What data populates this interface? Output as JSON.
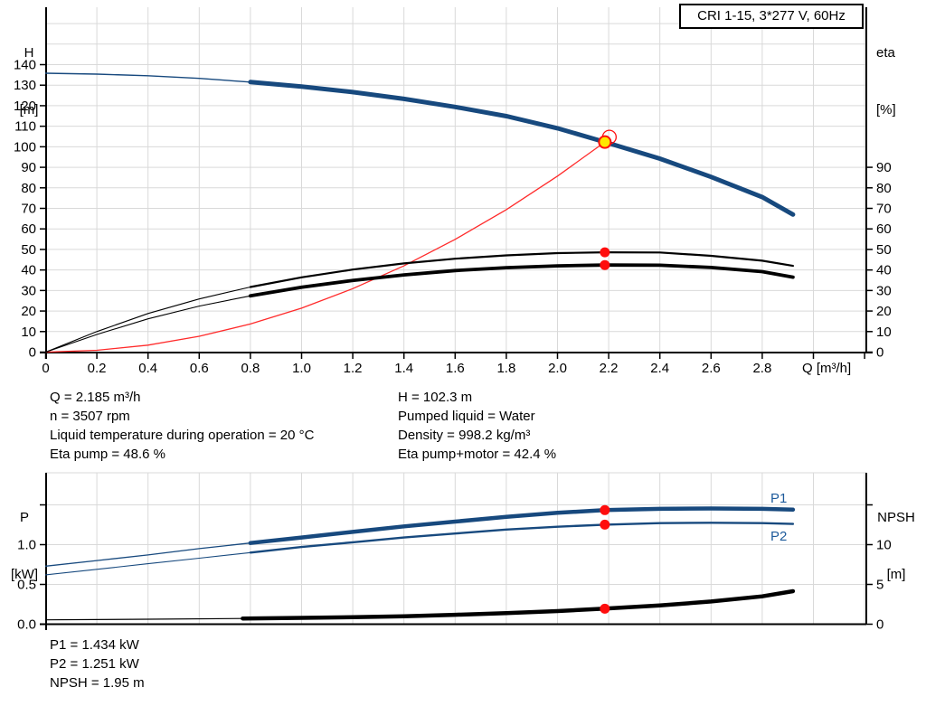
{
  "title_box": {
    "label": "CRI 1-15, 3*277 V, 60Hz"
  },
  "axis_titles": {
    "h": [
      "H",
      "[m]"
    ],
    "eta": [
      "eta",
      "[%]"
    ],
    "q": "Q [m³/h]",
    "p": [
      "P",
      "[kW]"
    ],
    "npsh": [
      "NPSH",
      "[m]"
    ],
    "p1": "P1",
    "p2": "P2"
  },
  "info_top": {
    "left": [
      "Q = 2.185 m³/h",
      "n = 3507 rpm",
      "Liquid temperature during operation = 20 °C",
      "Eta pump = 48.6 %"
    ],
    "right": [
      "H = 102.3 m",
      "Pumped liquid = Water",
      "Density = 998.2 kg/m³",
      "Eta pump+motor = 42.4 %"
    ]
  },
  "info_bottom": [
    "P1 = 1.434 kW",
    "P2 = 1.251 kW",
    "NPSH = 1.95 m"
  ],
  "colors": {
    "curve_blue": "#17497e",
    "curve_black": "#000000",
    "system_red": "#ff2a2a",
    "marker_red": "#ff0d0d",
    "duty_yellow": "#ffe600",
    "grid": "#d9d9d9",
    "axis": "#000000",
    "label_blue": "#1d5a9b"
  },
  "chart_data": [
    {
      "type": "line",
      "title": "CRI 1-15, 3*277 V, 60Hz",
      "xlabel": "Q [m³/h]",
      "ylabel_left": "H [m]",
      "ylabel_right": "eta [%]",
      "xlim": [
        0,
        3.2
      ],
      "ylim_left": [
        0,
        168
      ],
      "ylim_right_eta": [
        0,
        168
      ],
      "grid": true,
      "x_axis": {
        "tick_values": [
          0,
          0.2,
          0.4,
          0.6,
          0.8,
          1.0,
          1.2,
          1.4,
          1.6,
          1.8,
          2.0,
          2.2,
          2.4,
          2.6,
          2.8,
          3.0,
          3.2
        ],
        "tick_labels": [
          "0",
          "0.2",
          "0.4",
          "0.6",
          "0.8",
          "1.0",
          "1.2",
          "1.4",
          "1.6",
          "1.8",
          "2.0",
          "2.2",
          "2.4",
          "2.6",
          "2.8",
          "",
          ""
        ]
      },
      "h_axis": {
        "tick_values": [
          0,
          10,
          20,
          30,
          40,
          50,
          60,
          70,
          80,
          90,
          100,
          110,
          120,
          130,
          140
        ],
        "tick_labels": [
          "0",
          "10",
          "20",
          "30",
          "40",
          "50",
          "60",
          "70",
          "80",
          "90",
          "100",
          "110",
          "120",
          "130",
          "140"
        ]
      },
      "eta_axis": {
        "tick_values": [
          0,
          10,
          20,
          30,
          40,
          50,
          60,
          70,
          80,
          90
        ],
        "tick_labels": [
          "0",
          "10",
          "20",
          "30",
          "40",
          "50",
          "60",
          "70",
          "80",
          "90"
        ]
      },
      "series": [
        {
          "name": "system-curve",
          "axis": "H",
          "split_q": null,
          "points": [
            [
              0,
              0
            ],
            [
              0.2,
              0.9
            ],
            [
              0.4,
              3.4
            ],
            [
              0.6,
              7.7
            ],
            [
              0.8,
              13.7
            ],
            [
              1.0,
              21.4
            ],
            [
              1.2,
              30.9
            ],
            [
              1.4,
              42.0
            ],
            [
              1.6,
              54.9
            ],
            [
              1.8,
              69.4
            ],
            [
              2.0,
              85.7
            ],
            [
              2.185,
              102.3
            ]
          ]
        },
        {
          "name": "eta-pump",
          "axis": "eta",
          "split_q": 0.8,
          "points": [
            [
              0,
              0
            ],
            [
              0.2,
              10.0
            ],
            [
              0.4,
              18.8
            ],
            [
              0.6,
              25.9
            ],
            [
              0.8,
              31.7
            ],
            [
              1.0,
              36.4
            ],
            [
              1.2,
              40.2
            ],
            [
              1.4,
              43.2
            ],
            [
              1.6,
              45.5
            ],
            [
              1.8,
              47.1
            ],
            [
              2.0,
              48.2
            ],
            [
              2.185,
              48.6
            ],
            [
              2.4,
              48.5
            ],
            [
              2.6,
              46.9
            ],
            [
              2.8,
              44.5
            ],
            [
              2.92,
              42.0
            ]
          ]
        },
        {
          "name": "eta-pump-motor",
          "axis": "eta",
          "split_q": 0.8,
          "points": [
            [
              0,
              0
            ],
            [
              0.2,
              8.6
            ],
            [
              0.4,
              16.2
            ],
            [
              0.6,
              22.4
            ],
            [
              0.8,
              27.4
            ],
            [
              1.0,
              31.6
            ],
            [
              1.2,
              34.9
            ],
            [
              1.4,
              37.6
            ],
            [
              1.6,
              39.7
            ],
            [
              1.8,
              41.1
            ],
            [
              2.0,
              42.0
            ],
            [
              2.185,
              42.4
            ],
            [
              2.4,
              42.3
            ],
            [
              2.6,
              41.2
            ],
            [
              2.8,
              39.2
            ],
            [
              2.92,
              36.5
            ]
          ]
        },
        {
          "name": "head",
          "axis": "H",
          "split_q": 0.8,
          "points": [
            [
              0,
              135.8
            ],
            [
              0.2,
              135.4
            ],
            [
              0.4,
              134.6
            ],
            [
              0.6,
              133.3
            ],
            [
              0.8,
              131.5
            ],
            [
              1.0,
              129.3
            ],
            [
              1.2,
              126.6
            ],
            [
              1.4,
              123.3
            ],
            [
              1.6,
              119.4
            ],
            [
              1.8,
              114.9
            ],
            [
              2.0,
              109.0
            ],
            [
              2.185,
              102.3
            ],
            [
              2.4,
              94.2
            ],
            [
              2.6,
              85.3
            ],
            [
              2.8,
              75.5
            ],
            [
              2.92,
              67.0
            ]
          ]
        }
      ],
      "markers": [
        {
          "name": "eta-pump-point",
          "q": 2.185,
          "v": 48.6,
          "axis": "eta"
        },
        {
          "name": "eta-pump-motor-point",
          "q": 2.185,
          "v": 42.4,
          "axis": "eta"
        }
      ],
      "duty_point": {
        "q": 2.185,
        "h": 102.3
      }
    },
    {
      "type": "line",
      "xlabel": "",
      "ylabel_left": "P [kW]",
      "ylabel_right": "NPSH [m]",
      "xlim": [
        0,
        3.2
      ],
      "ylim_p": [
        0,
        1.9
      ],
      "ylim_npsh": [
        0,
        19
      ],
      "grid": true,
      "p_axis": {
        "tick_values": [
          0,
          0.5,
          1.0,
          1.5
        ],
        "tick_labels": [
          "0.0",
          "0.5",
          "1.0",
          ""
        ]
      },
      "npsh_axis": {
        "tick_values": [
          0,
          5,
          10,
          15
        ],
        "tick_labels": [
          "0",
          "5",
          "10",
          ""
        ]
      },
      "series": [
        {
          "name": "P1",
          "axis": "P",
          "split_q": 0.8,
          "points": [
            [
              0,
              0.73
            ],
            [
              0.2,
              0.8
            ],
            [
              0.4,
              0.87
            ],
            [
              0.6,
              0.95
            ],
            [
              0.8,
              1.02
            ],
            [
              1.0,
              1.09
            ],
            [
              1.2,
              1.16
            ],
            [
              1.4,
              1.23
            ],
            [
              1.6,
              1.29
            ],
            [
              1.8,
              1.35
            ],
            [
              2.0,
              1.4
            ],
            [
              2.185,
              1.434
            ],
            [
              2.4,
              1.45
            ],
            [
              2.6,
              1.455
            ],
            [
              2.8,
              1.45
            ],
            [
              2.92,
              1.44
            ]
          ]
        },
        {
          "name": "P2",
          "axis": "P",
          "split_q": 0.8,
          "points": [
            [
              0,
              0.62
            ],
            [
              0.2,
              0.69
            ],
            [
              0.4,
              0.76
            ],
            [
              0.6,
              0.83
            ],
            [
              0.8,
              0.9
            ],
            [
              1.0,
              0.97
            ],
            [
              1.2,
              1.03
            ],
            [
              1.4,
              1.09
            ],
            [
              1.6,
              1.14
            ],
            [
              1.8,
              1.19
            ],
            [
              2.0,
              1.225
            ],
            [
              2.185,
              1.251
            ],
            [
              2.4,
              1.27
            ],
            [
              2.6,
              1.275
            ],
            [
              2.8,
              1.27
            ],
            [
              2.92,
              1.26
            ]
          ]
        },
        {
          "name": "NPSH",
          "axis": "NPSH",
          "split_q": 0.77,
          "points": [
            [
              0,
              0.55
            ],
            [
              0.4,
              0.62
            ],
            [
              0.77,
              0.72
            ],
            [
              1.0,
              0.8
            ],
            [
              1.2,
              0.88
            ],
            [
              1.4,
              1.0
            ],
            [
              1.6,
              1.18
            ],
            [
              1.8,
              1.4
            ],
            [
              2.0,
              1.65
            ],
            [
              2.185,
              1.95
            ],
            [
              2.4,
              2.35
            ],
            [
              2.6,
              2.85
            ],
            [
              2.8,
              3.5
            ],
            [
              2.92,
              4.15
            ]
          ]
        }
      ],
      "markers": [
        {
          "name": "p1-point",
          "q": 2.185,
          "v": 1.434,
          "axis": "P"
        },
        {
          "name": "p2-point",
          "q": 2.185,
          "v": 1.251,
          "axis": "P"
        },
        {
          "name": "npsh-point",
          "q": 2.185,
          "v": 1.95,
          "axis": "NPSH"
        }
      ]
    }
  ]
}
